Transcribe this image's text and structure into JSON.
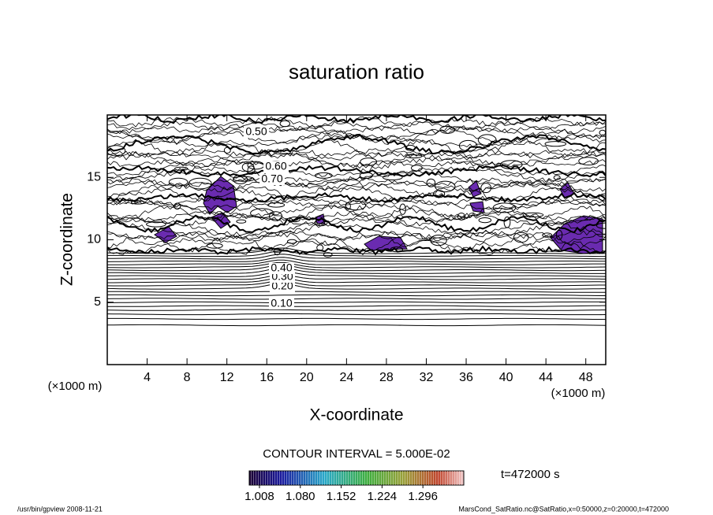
{
  "chart_data": {
    "type": "contour",
    "title": "saturation ratio",
    "xlabel": "X-coordinate",
    "ylabel": "Z-coordinate",
    "x_unit": "(×1000 m)",
    "y_unit": "(×1000 m)",
    "xlim": [
      0,
      50
    ],
    "ylim": [
      0,
      20
    ],
    "xticks": [
      4,
      8,
      12,
      16,
      20,
      24,
      28,
      32,
      36,
      40,
      44,
      48
    ],
    "yticks": [
      5,
      10,
      15
    ],
    "contour_levels": [
      {
        "value": 0.1,
        "label": "0.10"
      },
      {
        "value": 0.2,
        "label": "0.20"
      },
      {
        "value": 0.3,
        "label": "0.30"
      },
      {
        "value": 0.4,
        "label": "0.40"
      },
      {
        "value": 0.5,
        "label": "0.50"
      },
      {
        "value": 0.6,
        "label": "0.60"
      },
      {
        "value": 0.7,
        "label": "0.70"
      }
    ],
    "contour_interval": "CONTOUR INTERVAL = 5.000E-02",
    "time_label": "t=472000 s",
    "colorbar": {
      "lim": [
        0.99,
        1.368
      ],
      "ticks": [
        {
          "value": 1.008,
          "label": "1.008"
        },
        {
          "value": 1.08,
          "label": "1.080"
        },
        {
          "value": 1.152,
          "label": "1.152"
        },
        {
          "value": 1.224,
          "label": "1.224"
        },
        {
          "value": 1.296,
          "label": "1.296"
        }
      ]
    },
    "footer_left": "/usr/bin/gpview  2008-11-21",
    "footer_right": "MarsCond_SatRatio.nc@SatRatio,x=0:50000,z=0:20000,t=472000"
  }
}
